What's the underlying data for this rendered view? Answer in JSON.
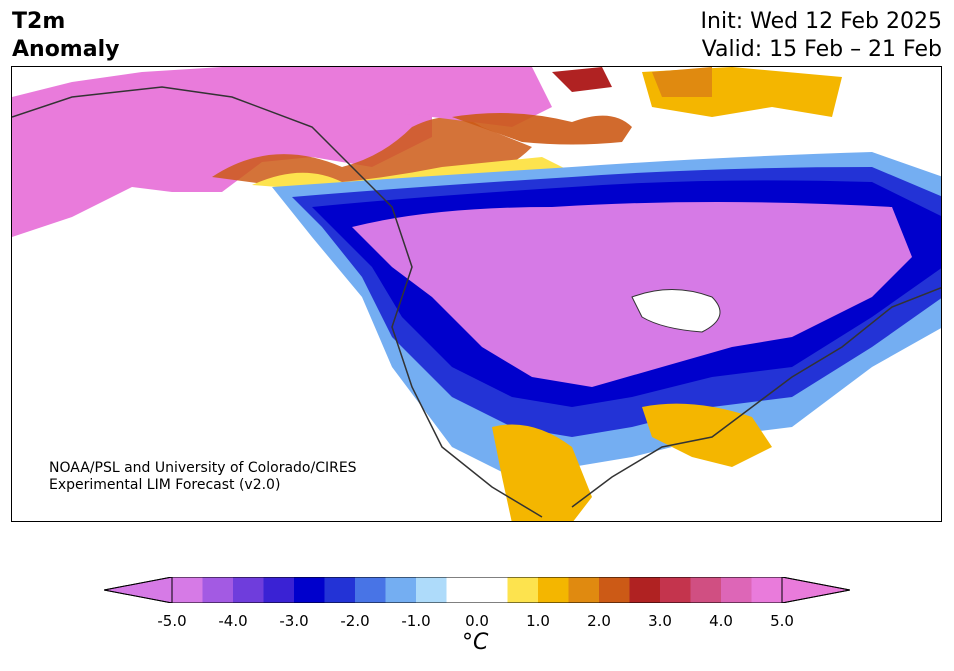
{
  "title": {
    "line1": "T2m",
    "line2": "Anomaly",
    "init": "Init: Wed 12 Feb 2025",
    "valid": "Valid: 15 Feb – 21 Feb"
  },
  "credit": {
    "line1": "NOAA/PSL and University of Colorado/CIRES",
    "line2": "Experimental LIM Forecast (v2.0)"
  },
  "colorbar": {
    "colors": [
      "#d67ae6",
      "#a35ae3",
      "#6f3ddc",
      "#3a22d4",
      "#0000cc",
      "#2333d6",
      "#4874e6",
      "#74aef2",
      "#aedbfa",
      "#ffffff",
      "#ffffff",
      "#fde34e",
      "#f4b600",
      "#e08a10",
      "#cc5a16",
      "#b02222",
      "#c4344d",
      "#d04f82",
      "#dd66b7",
      "#e97bdb"
    ],
    "unit": "°C",
    "ticks": [
      "-5.0",
      "-4.0",
      "-3.0",
      "-2.0",
      "-1.0",
      "0.0",
      "1.0",
      "2.0",
      "3.0",
      "4.0",
      "5.0"
    ]
  }
}
